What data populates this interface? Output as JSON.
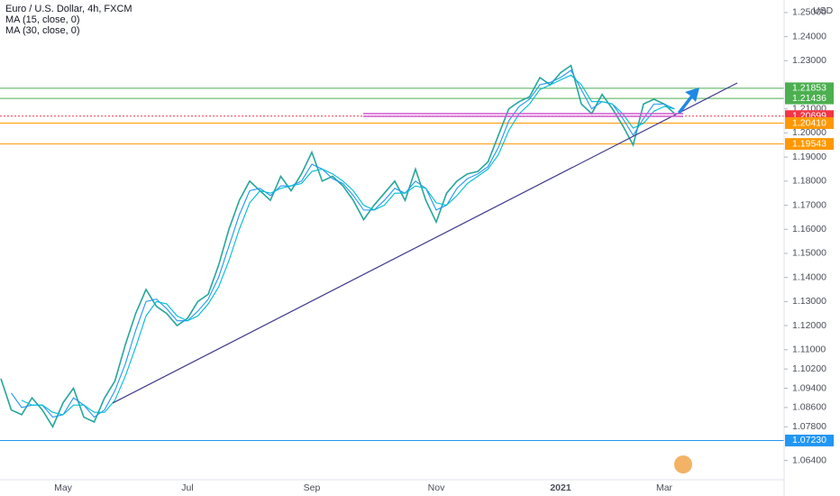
{
  "chart_data": {
    "type": "line",
    "title": "Euro / U.S. Dollar, 4h, FXCM",
    "currency": "USD",
    "categories": [
      null,
      null,
      null,
      null,
      null,
      null,
      "May",
      null,
      null,
      null,
      null,
      null,
      null,
      null,
      null,
      null,
      null,
      null,
      "Jul",
      null,
      null,
      null,
      null,
      null,
      null,
      null,
      null,
      null,
      null,
      null,
      "Sep",
      null,
      null,
      null,
      null,
      null,
      null,
      null,
      null,
      null,
      null,
      null,
      "Nov",
      null,
      null,
      null,
      null,
      null,
      null,
      null,
      null,
      null,
      null,
      null,
      "2021",
      null,
      null,
      null,
      null,
      null,
      null,
      null,
      null,
      null,
      "Mar",
      null
    ],
    "series": [
      {
        "color": "#26a69a",
        "values": [
          1.098,
          1.085,
          1.083,
          1.09,
          1.085,
          1.078,
          1.088,
          1.094,
          1.082,
          1.08,
          1.09,
          1.097,
          1.112,
          1.125,
          1.135,
          1.128,
          1.125,
          1.12,
          1.123,
          1.13,
          1.133,
          1.145,
          1.16,
          1.172,
          1.18,
          1.176,
          1.172,
          1.182,
          1.176,
          1.183,
          1.192,
          1.18,
          1.182,
          1.178,
          1.172,
          1.164,
          1.17,
          1.175,
          1.18,
          1.172,
          1.185,
          1.172,
          1.163,
          1.175,
          1.18,
          1.183,
          1.184,
          1.188,
          1.199,
          1.21,
          1.213,
          1.215,
          1.223,
          1.22,
          1.225,
          1.228,
          1.212,
          1.208,
          1.216,
          1.21,
          1.203,
          1.195,
          1.212,
          1.214,
          1.212,
          1.208
        ]
      },
      {
        "name": "MA (15, close, 0)",
        "color": "#2196f3",
        "values": [
          null,
          1.092,
          1.086,
          1.087,
          1.087,
          1.082,
          1.083,
          1.09,
          1.087,
          1.082,
          1.085,
          1.093,
          1.104,
          1.118,
          1.13,
          1.131,
          1.127,
          1.122,
          1.122,
          1.126,
          1.131,
          1.14,
          1.153,
          1.166,
          1.176,
          1.177,
          1.174,
          1.178,
          1.178,
          1.18,
          1.187,
          1.185,
          1.181,
          1.179,
          1.174,
          1.168,
          1.168,
          1.172,
          1.177,
          1.175,
          1.18,
          1.177,
          1.168,
          1.17,
          1.177,
          1.181,
          1.183,
          1.186,
          1.194,
          1.205,
          1.211,
          1.214,
          1.22,
          1.221,
          1.223,
          1.226,
          1.218,
          1.21,
          1.213,
          1.212,
          1.206,
          1.199,
          1.206,
          1.212,
          1.212,
          1.21
        ]
      },
      {
        "name": "MA (30, close, 0)",
        "color": "#00bcd4",
        "values": [
          null,
          null,
          1.089,
          1.087,
          1.087,
          1.084,
          1.083,
          1.087,
          1.087,
          1.084,
          1.084,
          1.089,
          1.099,
          1.111,
          1.124,
          1.13,
          1.129,
          1.124,
          1.122,
          1.124,
          1.129,
          1.136,
          1.147,
          1.16,
          1.171,
          1.176,
          1.175,
          1.177,
          1.178,
          1.179,
          1.184,
          1.185,
          1.183,
          1.18,
          1.176,
          1.17,
          1.168,
          1.17,
          1.175,
          1.175,
          1.178,
          1.177,
          1.171,
          1.17,
          1.174,
          1.179,
          1.182,
          1.185,
          1.191,
          1.201,
          1.208,
          1.212,
          1.218,
          1.22,
          1.222,
          1.224,
          1.22,
          1.213,
          1.213,
          1.212,
          1.208,
          1.202,
          1.204,
          1.209,
          1.211,
          1.21
        ]
      }
    ],
    "levels": [
      {
        "value": 1.21853,
        "label": "1.21853",
        "color": "#4caf50"
      },
      {
        "value": 1.21436,
        "label": "1.21436",
        "color": "#4caf50"
      },
      {
        "value": 1.20699,
        "label": "1.20699",
        "color": "#f23645"
      },
      {
        "value": 1.2041,
        "label": "1.20410",
        "color": "#ff9800"
      },
      {
        "value": 1.19543,
        "label": "1.19543",
        "color": "#ff9800"
      },
      {
        "value": 1.0723,
        "label": "1.07230",
        "color": "#2196f3"
      }
    ],
    "ylim": [
      1.056,
      1.2552
    ],
    "yticks": [
      {
        "value": 1.25,
        "label": "1.25000"
      },
      {
        "value": 1.24,
        "label": "1.24000"
      },
      {
        "value": 1.23,
        "label": "1.23000"
      },
      {
        "value": 1.21,
        "label": "1.21000"
      },
      {
        "value": 1.2,
        "label": "1.20000"
      },
      {
        "value": 1.19,
        "label": "1.19000"
      },
      {
        "value": 1.18,
        "label": "1.18000"
      },
      {
        "value": 1.17,
        "label": "1.17000"
      },
      {
        "value": 1.16,
        "label": "1.16000"
      },
      {
        "value": 1.15,
        "label": "1.15000"
      },
      {
        "value": 1.14,
        "label": "1.14000"
      },
      {
        "value": 1.13,
        "label": "1.13000"
      },
      {
        "value": 1.12,
        "label": "1.12000"
      },
      {
        "value": 1.11,
        "label": "1.11000"
      },
      {
        "value": 1.102,
        "label": "1.10200"
      },
      {
        "value": 1.094,
        "label": "1.09400"
      },
      {
        "value": 1.086,
        "label": "1.08600"
      },
      {
        "value": 1.078,
        "label": "1.07800"
      },
      {
        "value": 1.064,
        "label": "1.06400"
      }
    ]
  }
}
